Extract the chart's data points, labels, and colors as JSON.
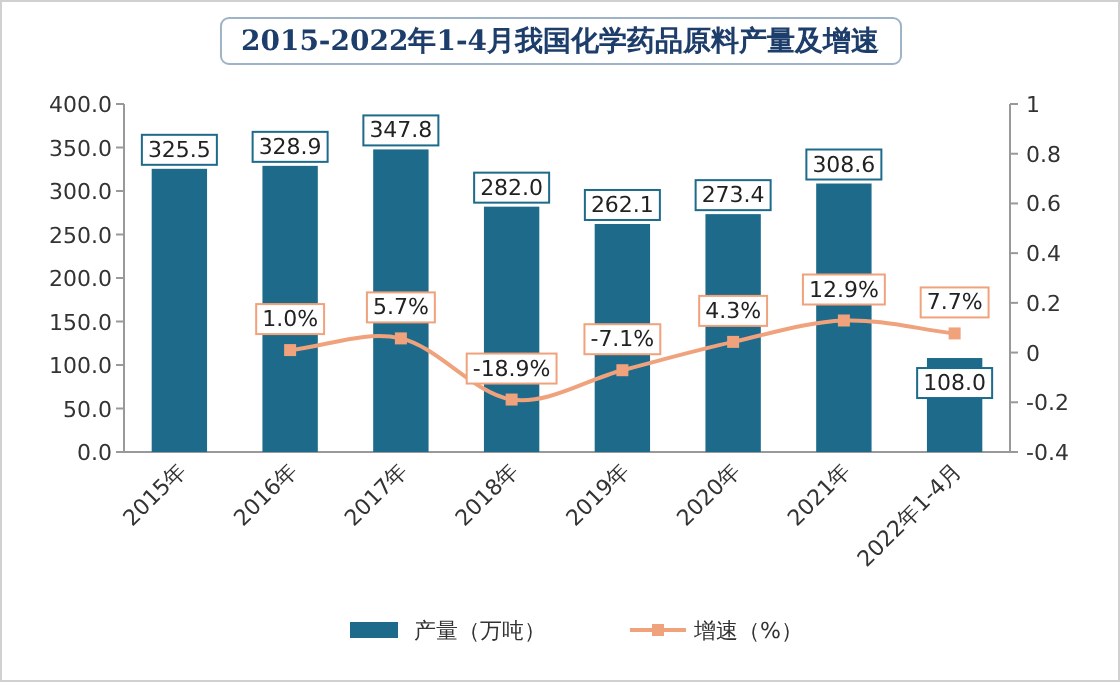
{
  "chart_data": {
    "type": "bar",
    "title": "2015-2022年1-4月我国化学药品原料产量及增速",
    "categories": [
      "2015年",
      "2016年",
      "2017年",
      "2018年",
      "2019年",
      "2020年",
      "2021年",
      "2022年1-4月"
    ],
    "series": [
      {
        "name": "产量（万吨）",
        "type": "bar",
        "color": "#1d6a8a",
        "values": [
          325.5,
          328.9,
          347.8,
          282.0,
          262.1,
          273.4,
          308.6,
          108.0
        ],
        "value_labels": [
          "325.5",
          "328.9",
          "347.8",
          "282.0",
          "262.1",
          "273.4",
          "308.6",
          "108.0"
        ]
      },
      {
        "name": "增速（%）",
        "type": "line",
        "axis": "y2",
        "color": "#f0a27c",
        "marker": "square",
        "values": [
          null,
          0.01,
          0.057,
          -0.189,
          -0.071,
          0.043,
          0.129,
          0.077
        ],
        "value_labels": [
          null,
          "1.0%",
          "5.7%",
          "-18.9%",
          "-7.1%",
          "4.3%",
          "12.9%",
          "7.7%"
        ]
      }
    ],
    "ylim": [
      0,
      400
    ],
    "yticks": [
      {
        "value": 0,
        "label": "0.0"
      },
      {
        "value": 50,
        "label": "50.0"
      },
      {
        "value": 100,
        "label": "100.0"
      },
      {
        "value": 150,
        "label": "150.0"
      },
      {
        "value": 200,
        "label": "200.0"
      },
      {
        "value": 250,
        "label": "250.0"
      },
      {
        "value": 300,
        "label": "300.0"
      },
      {
        "value": 350,
        "label": "350.0"
      },
      {
        "value": 400,
        "label": "400.0"
      }
    ],
    "y2lim": [
      -0.4,
      1
    ],
    "y2ticks": [
      -0.4,
      -0.2,
      0,
      0.2,
      0.4,
      0.6,
      0.8,
      1
    ],
    "legend": "bottom",
    "grid": false
  }
}
